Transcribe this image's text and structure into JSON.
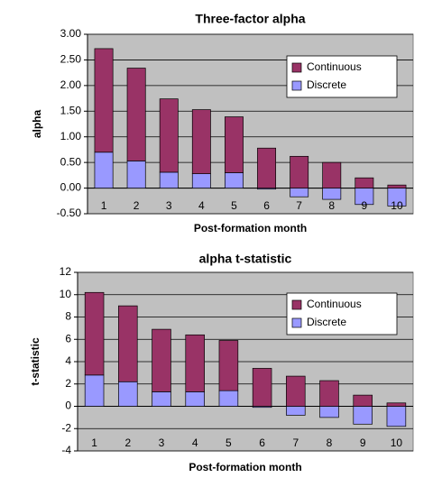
{
  "chart_data": [
    {
      "type": "stacked-bar",
      "title": "Three-factor alpha",
      "x_label": "Post-formation month",
      "y_label": "alpha",
      "categories": [
        "1",
        "2",
        "3",
        "4",
        "5",
        "6",
        "7",
        "8",
        "9",
        "10"
      ],
      "series": [
        {
          "name": "Continuous",
          "color": "#993366",
          "values": [
            2.02,
            1.81,
            1.43,
            1.25,
            1.09,
            0.78,
            0.62,
            0.5,
            0.2,
            0.06
          ]
        },
        {
          "name": "Discrete",
          "color": "#9999ff",
          "values": [
            0.7,
            0.53,
            0.31,
            0.28,
            0.3,
            -0.02,
            -0.17,
            -0.22,
            -0.32,
            -0.35
          ]
        }
      ],
      "ylim": [
        -0.5,
        3.0
      ],
      "yticks": [
        {
          "value": -0.5,
          "label": "-0.50"
        },
        {
          "value": 0,
          "label": "0.00"
        },
        {
          "value": 0.5,
          "label": "0.50"
        },
        {
          "value": 1,
          "label": "1.00"
        },
        {
          "value": 1.5,
          "label": "1.50"
        },
        {
          "value": 2,
          "label": "2.00"
        },
        {
          "value": 2.5,
          "label": "2.50"
        },
        {
          "value": 3,
          "label": "3.00"
        }
      ],
      "grid": true,
      "legend": "upper-right"
    },
    {
      "type": "stacked-bar",
      "title": "alpha t-statistic",
      "x_label": "Post-formation month",
      "y_label": "t-statistic",
      "categories": [
        "1",
        "2",
        "3",
        "4",
        "5",
        "6",
        "7",
        "8",
        "9",
        "10"
      ],
      "series": [
        {
          "name": "Continuous",
          "color": "#993366",
          "values": [
            7.4,
            6.8,
            5.6,
            5.1,
            4.5,
            3.4,
            2.7,
            2.3,
            1.0,
            0.3
          ]
        },
        {
          "name": "Discrete",
          "color": "#9999ff",
          "values": [
            2.8,
            2.2,
            1.3,
            1.3,
            1.4,
            -0.1,
            -0.8,
            -1.0,
            -1.6,
            -1.8
          ]
        }
      ],
      "ylim": [
        -4,
        12
      ],
      "yticks": [
        -4,
        -2,
        0,
        2,
        4,
        6,
        8,
        10,
        12
      ],
      "grid": true,
      "legend": "upper-right"
    }
  ]
}
